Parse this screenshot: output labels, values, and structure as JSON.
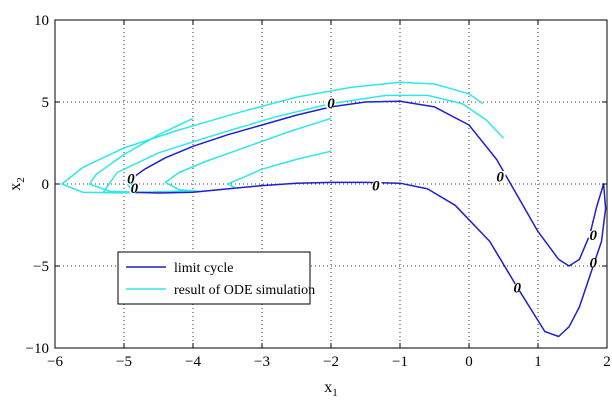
{
  "chart_data": {
    "type": "line",
    "title": "",
    "xlabel": "x",
    "xlabel_sub": "1",
    "ylabel": "x",
    "ylabel_sub": "2",
    "xlim": [
      -6,
      2
    ],
    "ylim": [
      -10,
      10
    ],
    "xticks": [
      -6,
      -5,
      -4,
      -3,
      -2,
      -1,
      0,
      1,
      2
    ],
    "yticks": [
      -10,
      -5,
      0,
      5,
      10
    ],
    "grid": true,
    "legend_placement": "lower-left",
    "series": [
      {
        "name": "limit cycle",
        "color": "#1f1fd0",
        "curves": [
          [
            [
              -4.9,
              0.3
            ],
            [
              -4.7,
              0.9
            ],
            [
              -4.4,
              1.6
            ],
            [
              -4.0,
              2.3
            ],
            [
              -3.5,
              3.0
            ],
            [
              -3.0,
              3.6
            ],
            [
              -2.5,
              4.2
            ],
            [
              -2.0,
              4.7
            ],
            [
              -1.5,
              5.0
            ],
            [
              -1.0,
              5.05
            ],
            [
              -0.5,
              4.7
            ],
            [
              0.0,
              3.6
            ],
            [
              0.4,
              1.5
            ],
            [
              0.7,
              -0.7
            ],
            [
              1.0,
              -2.9
            ],
            [
              1.3,
              -4.6
            ],
            [
              1.45,
              -5.0
            ],
            [
              1.6,
              -4.6
            ],
            [
              1.75,
              -3.1
            ],
            [
              1.85,
              -1.4
            ],
            [
              1.95,
              0.0
            ],
            [
              1.98,
              -1.5
            ],
            [
              1.92,
              -3.5
            ],
            [
              1.8,
              -5.0
            ],
            [
              1.6,
              -7.5
            ],
            [
              1.45,
              -8.7
            ],
            [
              1.3,
              -9.3
            ],
            [
              1.1,
              -9.0
            ],
            [
              0.7,
              -6.3
            ],
            [
              0.3,
              -3.5
            ],
            [
              -0.2,
              -1.3
            ],
            [
              -0.6,
              -0.3
            ],
            [
              -1.0,
              0.05
            ],
            [
              -1.5,
              0.1
            ],
            [
              -2.0,
              0.1
            ],
            [
              -2.5,
              0.05
            ],
            [
              -3.0,
              -0.1
            ],
            [
              -3.5,
              -0.3
            ],
            [
              -4.0,
              -0.5
            ],
            [
              -4.5,
              -0.55
            ],
            [
              -4.9,
              -0.5
            ]
          ]
        ]
      },
      {
        "name": "result of ODE simulation",
        "color": "#2ee8e8",
        "curves": [
          [
            [
              -4.0,
              4.0
            ],
            [
              -4.5,
              3.0
            ],
            [
              -5.0,
              1.8
            ],
            [
              -5.4,
              0.6
            ],
            [
              -5.5,
              0.0
            ],
            [
              -5.2,
              -0.45
            ],
            [
              -4.8,
              -0.5
            ],
            [
              -4.3,
              -0.45
            ],
            [
              -4.0,
              -0.4
            ]
          ],
          [
            [
              -2.0,
              4.0
            ],
            [
              -2.6,
              3.2
            ],
            [
              -3.2,
              2.3
            ],
            [
              -3.8,
              1.4
            ],
            [
              -4.2,
              0.7
            ],
            [
              -4.4,
              0.1
            ],
            [
              -4.2,
              -0.35
            ],
            [
              -3.9,
              -0.45
            ]
          ],
          [
            [
              -2.0,
              2.0
            ],
            [
              -2.5,
              1.5
            ],
            [
              -3.0,
              0.9
            ],
            [
              -3.3,
              0.35
            ],
            [
              -3.5,
              0.0
            ],
            [
              -3.4,
              -0.2
            ]
          ],
          [
            [
              -5.0,
              -0.55
            ],
            [
              -5.6,
              -0.5
            ],
            [
              -5.9,
              0.0
            ],
            [
              -5.6,
              1.0
            ],
            [
              -5.0,
              2.2
            ],
            [
              -4.2,
              3.3
            ],
            [
              -3.3,
              4.4
            ],
            [
              -2.5,
              5.3
            ],
            [
              -1.7,
              5.9
            ],
            [
              -1.0,
              6.2
            ],
            [
              -0.5,
              6.1
            ],
            [
              0.0,
              5.5
            ],
            [
              0.2,
              4.9
            ]
          ],
          [
            [
              -4.8,
              -0.55
            ],
            [
              -5.3,
              -0.5
            ],
            [
              -5.1,
              0.7
            ],
            [
              -4.5,
              1.9
            ],
            [
              -3.6,
              3.1
            ],
            [
              -2.8,
              4.1
            ],
            [
              -2.0,
              4.9
            ],
            [
              -1.2,
              5.4
            ],
            [
              -0.6,
              5.4
            ],
            [
              -0.1,
              4.9
            ],
            [
              0.25,
              3.9
            ],
            [
              0.5,
              2.8
            ]
          ],
          [
            [
              -4.8,
              0.1
            ],
            [
              -4.95,
              0.0
            ],
            [
              -4.9,
              -0.3
            ]
          ]
        ]
      }
    ],
    "markers": [
      {
        "label": "0",
        "x": -4.9,
        "y": 0.35,
        "angle": -60
      },
      {
        "label": "0",
        "x": -4.85,
        "y": -0.25,
        "angle": -60
      },
      {
        "label": "0",
        "x": -2.0,
        "y": 4.95,
        "angle": -45
      },
      {
        "label": "0",
        "x": -1.35,
        "y": -0.1,
        "angle": -45
      },
      {
        "label": "0",
        "x": 0.45,
        "y": 0.45,
        "angle": -45
      },
      {
        "label": "0",
        "x": 1.8,
        "y": -3.1,
        "angle": 0
      },
      {
        "label": "0",
        "x": 1.8,
        "y": -4.8,
        "angle": 0
      },
      {
        "label": "0",
        "x": 0.7,
        "y": -6.3,
        "angle": -45
      }
    ]
  }
}
